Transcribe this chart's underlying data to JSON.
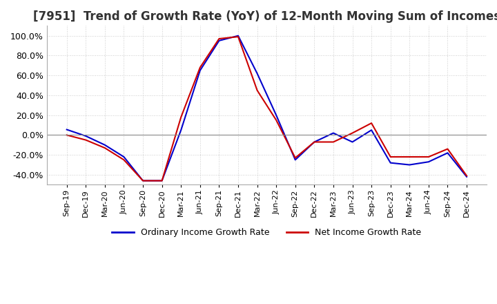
{
  "title": "[7951]  Trend of Growth Rate (YoY) of 12-Month Moving Sum of Incomes",
  "title_fontsize": 12,
  "background_color": "#ffffff",
  "plot_bg_color": "#ffffff",
  "grid_color": "#cccccc",
  "xlabel": "",
  "ylabel": "",
  "ylim": [
    -0.5,
    1.1
  ],
  "yticks": [
    -0.4,
    -0.2,
    0.0,
    0.2,
    0.4,
    0.6,
    0.8,
    1.0
  ],
  "legend_labels": [
    "Ordinary Income Growth Rate",
    "Net Income Growth Rate"
  ],
  "legend_colors": [
    "#0000cc",
    "#cc0000"
  ],
  "x_labels": [
    "Sep-19",
    "Dec-19",
    "Mar-20",
    "Jun-20",
    "Sep-20",
    "Dec-20",
    "Mar-21",
    "Jun-21",
    "Sep-21",
    "Dec-21",
    "Mar-22",
    "Jun-22",
    "Sep-22",
    "Dec-22",
    "Mar-23",
    "Jun-23",
    "Sep-23",
    "Dec-23",
    "Mar-24",
    "Jun-24",
    "Sep-24",
    "Dec-24"
  ],
  "ordinary_income": [
    0.055,
    -0.01,
    -0.1,
    -0.22,
    -0.46,
    -0.46,
    0.05,
    0.65,
    0.95,
    1.0,
    0.62,
    0.2,
    -0.25,
    -0.07,
    0.02,
    -0.07,
    0.05,
    -0.28,
    -0.3,
    -0.27,
    -0.18,
    -0.42
  ],
  "net_income": [
    0.0,
    -0.05,
    -0.13,
    -0.25,
    -0.46,
    -0.46,
    0.18,
    0.68,
    0.97,
    0.99,
    0.45,
    0.15,
    -0.23,
    -0.07,
    -0.07,
    0.02,
    0.12,
    -0.22,
    -0.22,
    -0.22,
    -0.14,
    -0.41
  ],
  "linewidth": 1.5
}
